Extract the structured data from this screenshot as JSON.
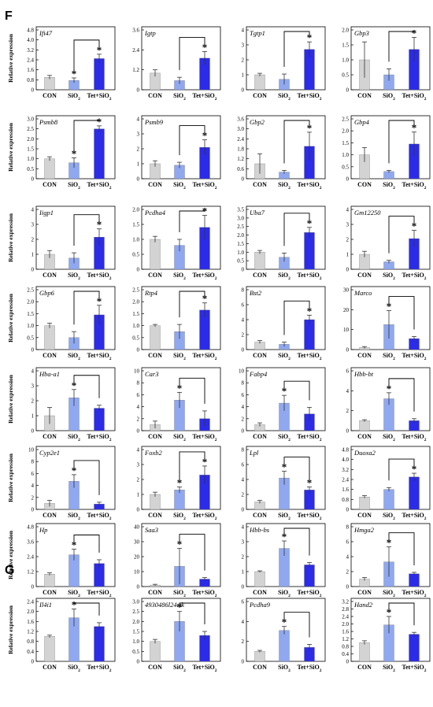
{
  "panels": [
    {
      "letter": "F"
    },
    {
      "letter": "G"
    }
  ],
  "colors": {
    "con": "#d3d3d3",
    "sio2": "#8fa8f0",
    "tet": "#2b2be8",
    "axis": "#000000"
  },
  "chart_data": [
    {
      "panel": "F",
      "type": "bar",
      "title": "Ifi47",
      "ylabel": "Relative expression",
      "categories": [
        "CON",
        "SiO2",
        "Tet+SiO2"
      ],
      "values": [
        1.0,
        0.75,
        2.5
      ],
      "errors": [
        0.15,
        0.2,
        0.35
      ],
      "ylim": [
        0,
        4.8
      ],
      "yticks": [
        "0",
        "0.8",
        "1.6",
        "2.4",
        "3.2",
        "4.0",
        "4.8"
      ],
      "stars": [
        false,
        true,
        true
      ],
      "bracket": [
        1,
        2
      ]
    },
    {
      "panel": "F",
      "type": "bar",
      "title": "Igtp",
      "ylabel": "",
      "categories": [
        "CON",
        "SiO2",
        "Tet+SiO2"
      ],
      "values": [
        1.0,
        0.55,
        1.9
      ],
      "errors": [
        0.2,
        0.2,
        0.4
      ],
      "ylim": [
        0,
        3.6
      ],
      "yticks": [
        "0",
        "1.2",
        "2.4",
        "3.6"
      ],
      "stars": [
        false,
        false,
        true
      ],
      "bracket": [
        1,
        2
      ]
    },
    {
      "panel": "F",
      "type": "bar",
      "title": "Tgtp1",
      "ylabel": "",
      "categories": [
        "CON",
        "SiO2",
        "Tet+SiO2"
      ],
      "values": [
        1.0,
        0.7,
        2.7
      ],
      "errors": [
        0.1,
        0.35,
        0.5
      ],
      "ylim": [
        0,
        4
      ],
      "yticks": [
        "0",
        "1",
        "2",
        "3",
        "4"
      ],
      "stars": [
        false,
        false,
        true
      ],
      "bracket": [
        1,
        2
      ]
    },
    {
      "panel": "F",
      "type": "bar",
      "title": "Gbp3",
      "ylabel": "",
      "categories": [
        "CON",
        "SiO2",
        "Tet+SiO2"
      ],
      "values": [
        1.0,
        0.5,
        1.35
      ],
      "errors": [
        0.6,
        0.2,
        0.4
      ],
      "ylim": [
        0,
        2
      ],
      "yticks": [
        "0",
        "0.5",
        "1.0",
        "1.5",
        "2.0"
      ],
      "stars": [
        false,
        false,
        true
      ],
      "bracket": [
        1,
        2
      ]
    },
    {
      "panel": "F",
      "type": "bar",
      "title": "Psmb8",
      "ylabel": "Relative expression",
      "categories": [
        "CON",
        "SiO2",
        "Tet+SiO2"
      ],
      "values": [
        1.0,
        0.8,
        2.5
      ],
      "errors": [
        0.1,
        0.25,
        0.15
      ],
      "ylim": [
        0,
        3
      ],
      "yticks": [
        "0",
        "0.5",
        "1.0",
        "1.5",
        "2.0",
        "2.5",
        "3.0"
      ],
      "stars": [
        false,
        true,
        true
      ],
      "bracket": [
        1,
        2
      ]
    },
    {
      "panel": "F",
      "type": "bar",
      "title": "Psmb9",
      "ylabel": "",
      "categories": [
        "CON",
        "SiO2",
        "Tet+SiO2"
      ],
      "values": [
        1.0,
        0.9,
        2.1
      ],
      "errors": [
        0.2,
        0.2,
        0.5
      ],
      "ylim": [
        0,
        4
      ],
      "yticks": [
        "0",
        "1",
        "2",
        "3",
        "4"
      ],
      "stars": [
        false,
        false,
        true
      ],
      "bracket": [
        1,
        2
      ]
    },
    {
      "panel": "F",
      "type": "bar",
      "title": "Gbp2",
      "ylabel": "",
      "categories": [
        "CON",
        "SiO2",
        "Tet+SiO2"
      ],
      "values": [
        0.9,
        0.4,
        1.95
      ],
      "errors": [
        0.6,
        0.1,
        0.85
      ],
      "ylim": [
        0,
        3.6
      ],
      "yticks": [
        "0",
        "0.6",
        "1.2",
        "1.8",
        "2.4",
        "3.0",
        "3.6"
      ],
      "stars": [
        false,
        false,
        true
      ],
      "bracket": [
        1,
        2
      ]
    },
    {
      "panel": "F",
      "type": "bar",
      "title": "Gbp4",
      "ylabel": "",
      "categories": [
        "CON",
        "SiO2",
        "Tet+SiO2"
      ],
      "values": [
        1.0,
        0.3,
        1.45
      ],
      "errors": [
        0.3,
        0.05,
        0.5
      ],
      "ylim": [
        0,
        2.5
      ],
      "yticks": [
        "0",
        "0.5",
        "1.0",
        "1.5",
        "2.0",
        "2.5"
      ],
      "stars": [
        false,
        false,
        true
      ],
      "bracket": [
        1,
        2
      ]
    },
    {
      "panel": "F",
      "type": "bar",
      "title": "Iigp1",
      "ylabel": "Relative expression",
      "categories": [
        "CON",
        "SiO2",
        "Tet+SiO2"
      ],
      "values": [
        1.0,
        0.75,
        2.15
      ],
      "errors": [
        0.25,
        0.35,
        0.55
      ],
      "ylim": [
        0,
        4
      ],
      "yticks": [
        "0",
        "1",
        "2",
        "3",
        "4"
      ],
      "stars": [
        false,
        false,
        true
      ],
      "bracket": [
        1,
        2
      ]
    },
    {
      "panel": "F",
      "type": "bar",
      "title": "Pcdha4",
      "ylabel": "",
      "categories": [
        "CON",
        "SiO2",
        "Tet+SiO2"
      ],
      "values": [
        1.0,
        0.8,
        1.4
      ],
      "errors": [
        0.1,
        0.2,
        0.4
      ],
      "ylim": [
        0,
        2
      ],
      "yticks": [
        "0",
        "0.5",
        "1.0",
        "1.5",
        "2.0"
      ],
      "stars": [
        false,
        false,
        true
      ],
      "bracket": [
        1,
        2
      ]
    },
    {
      "panel": "F",
      "type": "bar",
      "title": "Uba7",
      "ylabel": "",
      "categories": [
        "CON",
        "SiO2",
        "Tet+SiO2"
      ],
      "values": [
        1.0,
        0.7,
        2.15
      ],
      "errors": [
        0.1,
        0.25,
        0.3
      ],
      "ylim": [
        0,
        3.5
      ],
      "yticks": [
        "0",
        "0.5",
        "1.0",
        "1.5",
        "2.0",
        "2.5",
        "3.0",
        "3.5"
      ],
      "stars": [
        false,
        false,
        true
      ],
      "bracket": [
        1,
        2
      ]
    },
    {
      "panel": "F",
      "type": "bar",
      "title": "Gm12250",
      "ylabel": "",
      "categories": [
        "CON",
        "SiO2",
        "Tet+SiO2"
      ],
      "values": [
        1.0,
        0.5,
        2.05
      ],
      "errors": [
        0.2,
        0.1,
        0.55
      ],
      "ylim": [
        0,
        4
      ],
      "yticks": [
        "0",
        "1",
        "2",
        "3",
        "4"
      ],
      "stars": [
        false,
        false,
        true
      ],
      "bracket": [
        1,
        2
      ]
    },
    {
      "panel": "F",
      "type": "bar",
      "title": "Gbp6",
      "ylabel": "Relative expression",
      "categories": [
        "CON",
        "SiO2",
        "Tet+SiO2"
      ],
      "values": [
        1.0,
        0.5,
        1.45
      ],
      "errors": [
        0.1,
        0.25,
        0.4
      ],
      "ylim": [
        0,
        2.5
      ],
      "yticks": [
        "0",
        "0.5",
        "1.0",
        "1.5",
        "2.0",
        "2.5"
      ],
      "stars": [
        false,
        false,
        true
      ],
      "bracket": [
        1,
        2
      ]
    },
    {
      "panel": "F",
      "type": "bar",
      "title": "Rtp4",
      "ylabel": "",
      "categories": [
        "CON",
        "SiO2",
        "Tet+SiO2"
      ],
      "values": [
        1.0,
        0.75,
        1.65
      ],
      "errors": [
        0.05,
        0.3,
        0.3
      ],
      "ylim": [
        0,
        2.5
      ],
      "yticks": [
        "0",
        "0.5",
        "1.0",
        "1.5",
        "2.0",
        "2.5"
      ],
      "stars": [
        false,
        false,
        true
      ],
      "bracket": [
        1,
        2
      ]
    },
    {
      "panel": "F",
      "type": "bar",
      "title": "Bst2",
      "ylabel": "",
      "categories": [
        "CON",
        "SiO2",
        "Tet+SiO2"
      ],
      "values": [
        1.0,
        0.7,
        4.0
      ],
      "errors": [
        0.2,
        0.3,
        0.6
      ],
      "ylim": [
        0,
        8
      ],
      "yticks": [
        "0",
        "2",
        "4",
        "6",
        "8"
      ],
      "stars": [
        false,
        false,
        true
      ],
      "bracket": [
        1,
        2
      ]
    },
    {
      "panel": "F",
      "type": "bar",
      "title": "Marco",
      "ylabel": "",
      "categories": [
        "CON",
        "SiO2",
        "Tet+SiO2"
      ],
      "values": [
        1.0,
        12.5,
        5.5
      ],
      "errors": [
        0.5,
        7.0,
        1.0
      ],
      "ylim": [
        0,
        30
      ],
      "yticks": [
        "0",
        "10",
        "20",
        "30"
      ],
      "stars": [
        false,
        true,
        false
      ],
      "bracket": [
        1,
        2
      ]
    },
    {
      "panel": "F",
      "type": "bar",
      "title": "Hba-a1",
      "ylabel": "Relative expression",
      "categories": [
        "CON",
        "SiO2",
        "Tet+SiO2"
      ],
      "values": [
        1.0,
        2.2,
        1.5
      ],
      "errors": [
        0.55,
        0.55,
        0.2
      ],
      "ylim": [
        0,
        4
      ],
      "yticks": [
        "0",
        "1",
        "2",
        "3",
        "4"
      ],
      "stars": [
        false,
        true,
        false
      ],
      "bracket": [
        1,
        2
      ]
    },
    {
      "panel": "F",
      "type": "bar",
      "title": "Car3",
      "ylabel": "",
      "categories": [
        "CON",
        "SiO2",
        "Tet+SiO2"
      ],
      "values": [
        1.0,
        5.1,
        2.0
      ],
      "errors": [
        0.6,
        1.3,
        1.3
      ],
      "ylim": [
        0,
        10
      ],
      "yticks": [
        "0",
        "2",
        "4",
        "6",
        "8",
        "10"
      ],
      "stars": [
        false,
        true,
        false
      ],
      "bracket": [
        1,
        2
      ]
    },
    {
      "panel": "F",
      "type": "bar",
      "title": "Fabp4",
      "ylabel": "",
      "categories": [
        "CON",
        "SiO2",
        "Tet+SiO2"
      ],
      "values": [
        1.0,
        4.6,
        2.8
      ],
      "errors": [
        0.3,
        1.3,
        1.1
      ],
      "ylim": [
        0,
        10
      ],
      "yticks": [
        "0",
        "2",
        "4",
        "6",
        "8",
        "10"
      ],
      "stars": [
        false,
        true,
        false
      ],
      "bracket": [
        1,
        2
      ]
    },
    {
      "panel": "F",
      "type": "bar",
      "title": "Hbb-bt",
      "ylabel": "",
      "categories": [
        "CON",
        "SiO2",
        "Tet+SiO2"
      ],
      "values": [
        1.0,
        3.2,
        1.0
      ],
      "errors": [
        0.1,
        0.6,
        0.2
      ],
      "ylim": [
        0,
        6
      ],
      "yticks": [
        "0",
        "2",
        "4",
        "6"
      ],
      "stars": [
        false,
        true,
        false
      ],
      "bracket": [
        1,
        2
      ]
    },
    {
      "panel": "F",
      "type": "bar",
      "title": "Cyp2e1",
      "ylabel": "Relative expression",
      "categories": [
        "CON",
        "SiO2",
        "Tet+SiO2"
      ],
      "values": [
        1.0,
        4.7,
        0.9
      ],
      "errors": [
        0.5,
        1.1,
        0.3
      ],
      "ylim": [
        0,
        10
      ],
      "yticks": [
        "0",
        "2",
        "4",
        "6",
        "8",
        "10"
      ],
      "stars": [
        false,
        true,
        false
      ],
      "bracket": [
        1,
        2
      ]
    },
    {
      "panel": "F",
      "type": "bar",
      "title": "Foxb2",
      "ylabel": "",
      "categories": [
        "CON",
        "SiO2",
        "Tet+SiO2"
      ],
      "values": [
        1.0,
        1.3,
        2.3
      ],
      "errors": [
        0.15,
        0.2,
        0.6
      ],
      "ylim": [
        0,
        4
      ],
      "yticks": [
        "0",
        "1",
        "2",
        "3",
        "4"
      ],
      "stars": [
        false,
        true,
        true
      ],
      "bracket": [
        1,
        2
      ]
    },
    {
      "panel": "F",
      "type": "bar",
      "title": "Lpl",
      "ylabel": "",
      "categories": [
        "CON",
        "SiO2",
        "Tet+SiO2"
      ],
      "values": [
        1.0,
        4.2,
        2.6
      ],
      "errors": [
        0.2,
        0.9,
        0.4
      ],
      "ylim": [
        0,
        8
      ],
      "yticks": [
        "0",
        "2",
        "4",
        "6",
        "8"
      ],
      "stars": [
        false,
        true,
        true
      ],
      "bracket": [
        1,
        2
      ]
    },
    {
      "panel": "F",
      "type": "bar",
      "title": "Duoxa2",
      "ylabel": "",
      "categories": [
        "CON",
        "SiO2",
        "Tet+SiO2"
      ],
      "values": [
        1.0,
        1.6,
        2.6
      ],
      "errors": [
        0.1,
        0.15,
        0.3
      ],
      "ylim": [
        0,
        4.8
      ],
      "yticks": [
        "0",
        "0.8",
        "1.6",
        "2.4",
        "3.2",
        "4.0",
        "4.8"
      ],
      "stars": [
        false,
        false,
        true
      ],
      "bracket": [
        1,
        2
      ]
    },
    {
      "panel": "F",
      "type": "bar",
      "title": "Hp",
      "ylabel": "Relative expression",
      "categories": [
        "CON",
        "SiO2",
        "Tet+SiO2"
      ],
      "values": [
        1.0,
        2.55,
        1.85
      ],
      "errors": [
        0.1,
        0.45,
        0.3
      ],
      "ylim": [
        0,
        4.8
      ],
      "yticks": [
        "0",
        "1.2",
        "2.4",
        "3.6",
        "4.8"
      ],
      "stars": [
        false,
        true,
        false
      ],
      "bracket": [
        1,
        2
      ]
    },
    {
      "panel": "F",
      "type": "bar",
      "title": "Saa3",
      "ylabel": "",
      "categories": [
        "CON",
        "SiO2",
        "Tet+SiO2"
      ],
      "values": [
        1.0,
        13.5,
        5.0
      ],
      "errors": [
        0.5,
        12.0,
        1.0
      ],
      "ylim": [
        0,
        40
      ],
      "yticks": [
        "0",
        "10",
        "20",
        "30",
        "40"
      ],
      "stars": [
        false,
        true,
        false
      ],
      "bracket": [
        1,
        2
      ]
    },
    {
      "panel": "F",
      "type": "bar",
      "title": "Hbb-bs",
      "ylabel": "",
      "categories": [
        "CON",
        "SiO2",
        "Tet+SiO2"
      ],
      "values": [
        1.0,
        2.55,
        1.45
      ],
      "errors": [
        0.05,
        0.5,
        0.15
      ],
      "ylim": [
        0,
        4
      ],
      "yticks": [
        "0",
        "1",
        "2",
        "3",
        "4"
      ],
      "stars": [
        false,
        true,
        false
      ],
      "bracket": [
        1,
        2
      ]
    },
    {
      "panel": "F",
      "type": "bar",
      "title": "Hmga2",
      "ylabel": "",
      "categories": [
        "CON",
        "SiO2",
        "Tet+SiO2"
      ],
      "values": [
        1.0,
        3.3,
        1.7
      ],
      "errors": [
        0.2,
        2.0,
        0.2
      ],
      "ylim": [
        0,
        8
      ],
      "yticks": [
        "0",
        "2",
        "4",
        "6",
        "8"
      ],
      "stars": [
        false,
        true,
        false
      ],
      "bracket": [
        1,
        2
      ]
    },
    {
      "panel": "G",
      "type": "bar",
      "title": "Il4i1",
      "ylabel": "Relative expression",
      "categories": [
        "CON",
        "SiO2",
        "Tet+SiO2"
      ],
      "values": [
        1.0,
        1.75,
        1.4
      ],
      "errors": [
        0.05,
        0.35,
        0.15
      ],
      "ylim": [
        0,
        2.4
      ],
      "yticks": [
        "0",
        "0.4",
        "0.8",
        "1.2",
        "1.6",
        "2.0",
        "2.4"
      ],
      "stars": [
        false,
        true,
        false
      ],
      "bracket": [
        1,
        2
      ]
    },
    {
      "panel": "G",
      "type": "bar",
      "title": "4930486l24rik",
      "ylabel": "",
      "categories": [
        "CON",
        "SiO2",
        "Tet+SiO2"
      ],
      "values": [
        1.0,
        2.0,
        1.3
      ],
      "errors": [
        0.1,
        0.5,
        0.2
      ],
      "ylim": [
        0,
        3
      ],
      "yticks": [
        "0",
        "0.5",
        "1.0",
        "1.5",
        "2.0",
        "2.5",
        "3.0"
      ],
      "stars": [
        false,
        true,
        false
      ],
      "bracket": [
        1,
        2
      ]
    },
    {
      "panel": "G",
      "type": "bar",
      "title": "Pcdha9",
      "ylabel": "",
      "categories": [
        "CON",
        "SiO2",
        "Tet+SiO2"
      ],
      "values": [
        1.0,
        3.1,
        1.4
      ],
      "errors": [
        0.1,
        0.4,
        0.3
      ],
      "ylim": [
        0,
        6
      ],
      "yticks": [
        "0",
        "2",
        "4",
        "6"
      ],
      "stars": [
        false,
        true,
        false
      ],
      "bracket": [
        1,
        2
      ]
    },
    {
      "panel": "G",
      "type": "bar",
      "title": "Hand2",
      "ylabel": "",
      "categories": [
        "CON",
        "SiO2",
        "Tet+SiO2"
      ],
      "values": [
        1.0,
        1.95,
        1.45
      ],
      "errors": [
        0.1,
        0.45,
        0.1
      ],
      "ylim": [
        0,
        3.2
      ],
      "yticks": [
        "0",
        "0.4",
        "0.8",
        "1.2",
        "1.6",
        "2.0",
        "2.4",
        "2.8",
        "3.2"
      ],
      "stars": [
        false,
        true,
        false
      ],
      "bracket": [
        1,
        2
      ]
    }
  ]
}
